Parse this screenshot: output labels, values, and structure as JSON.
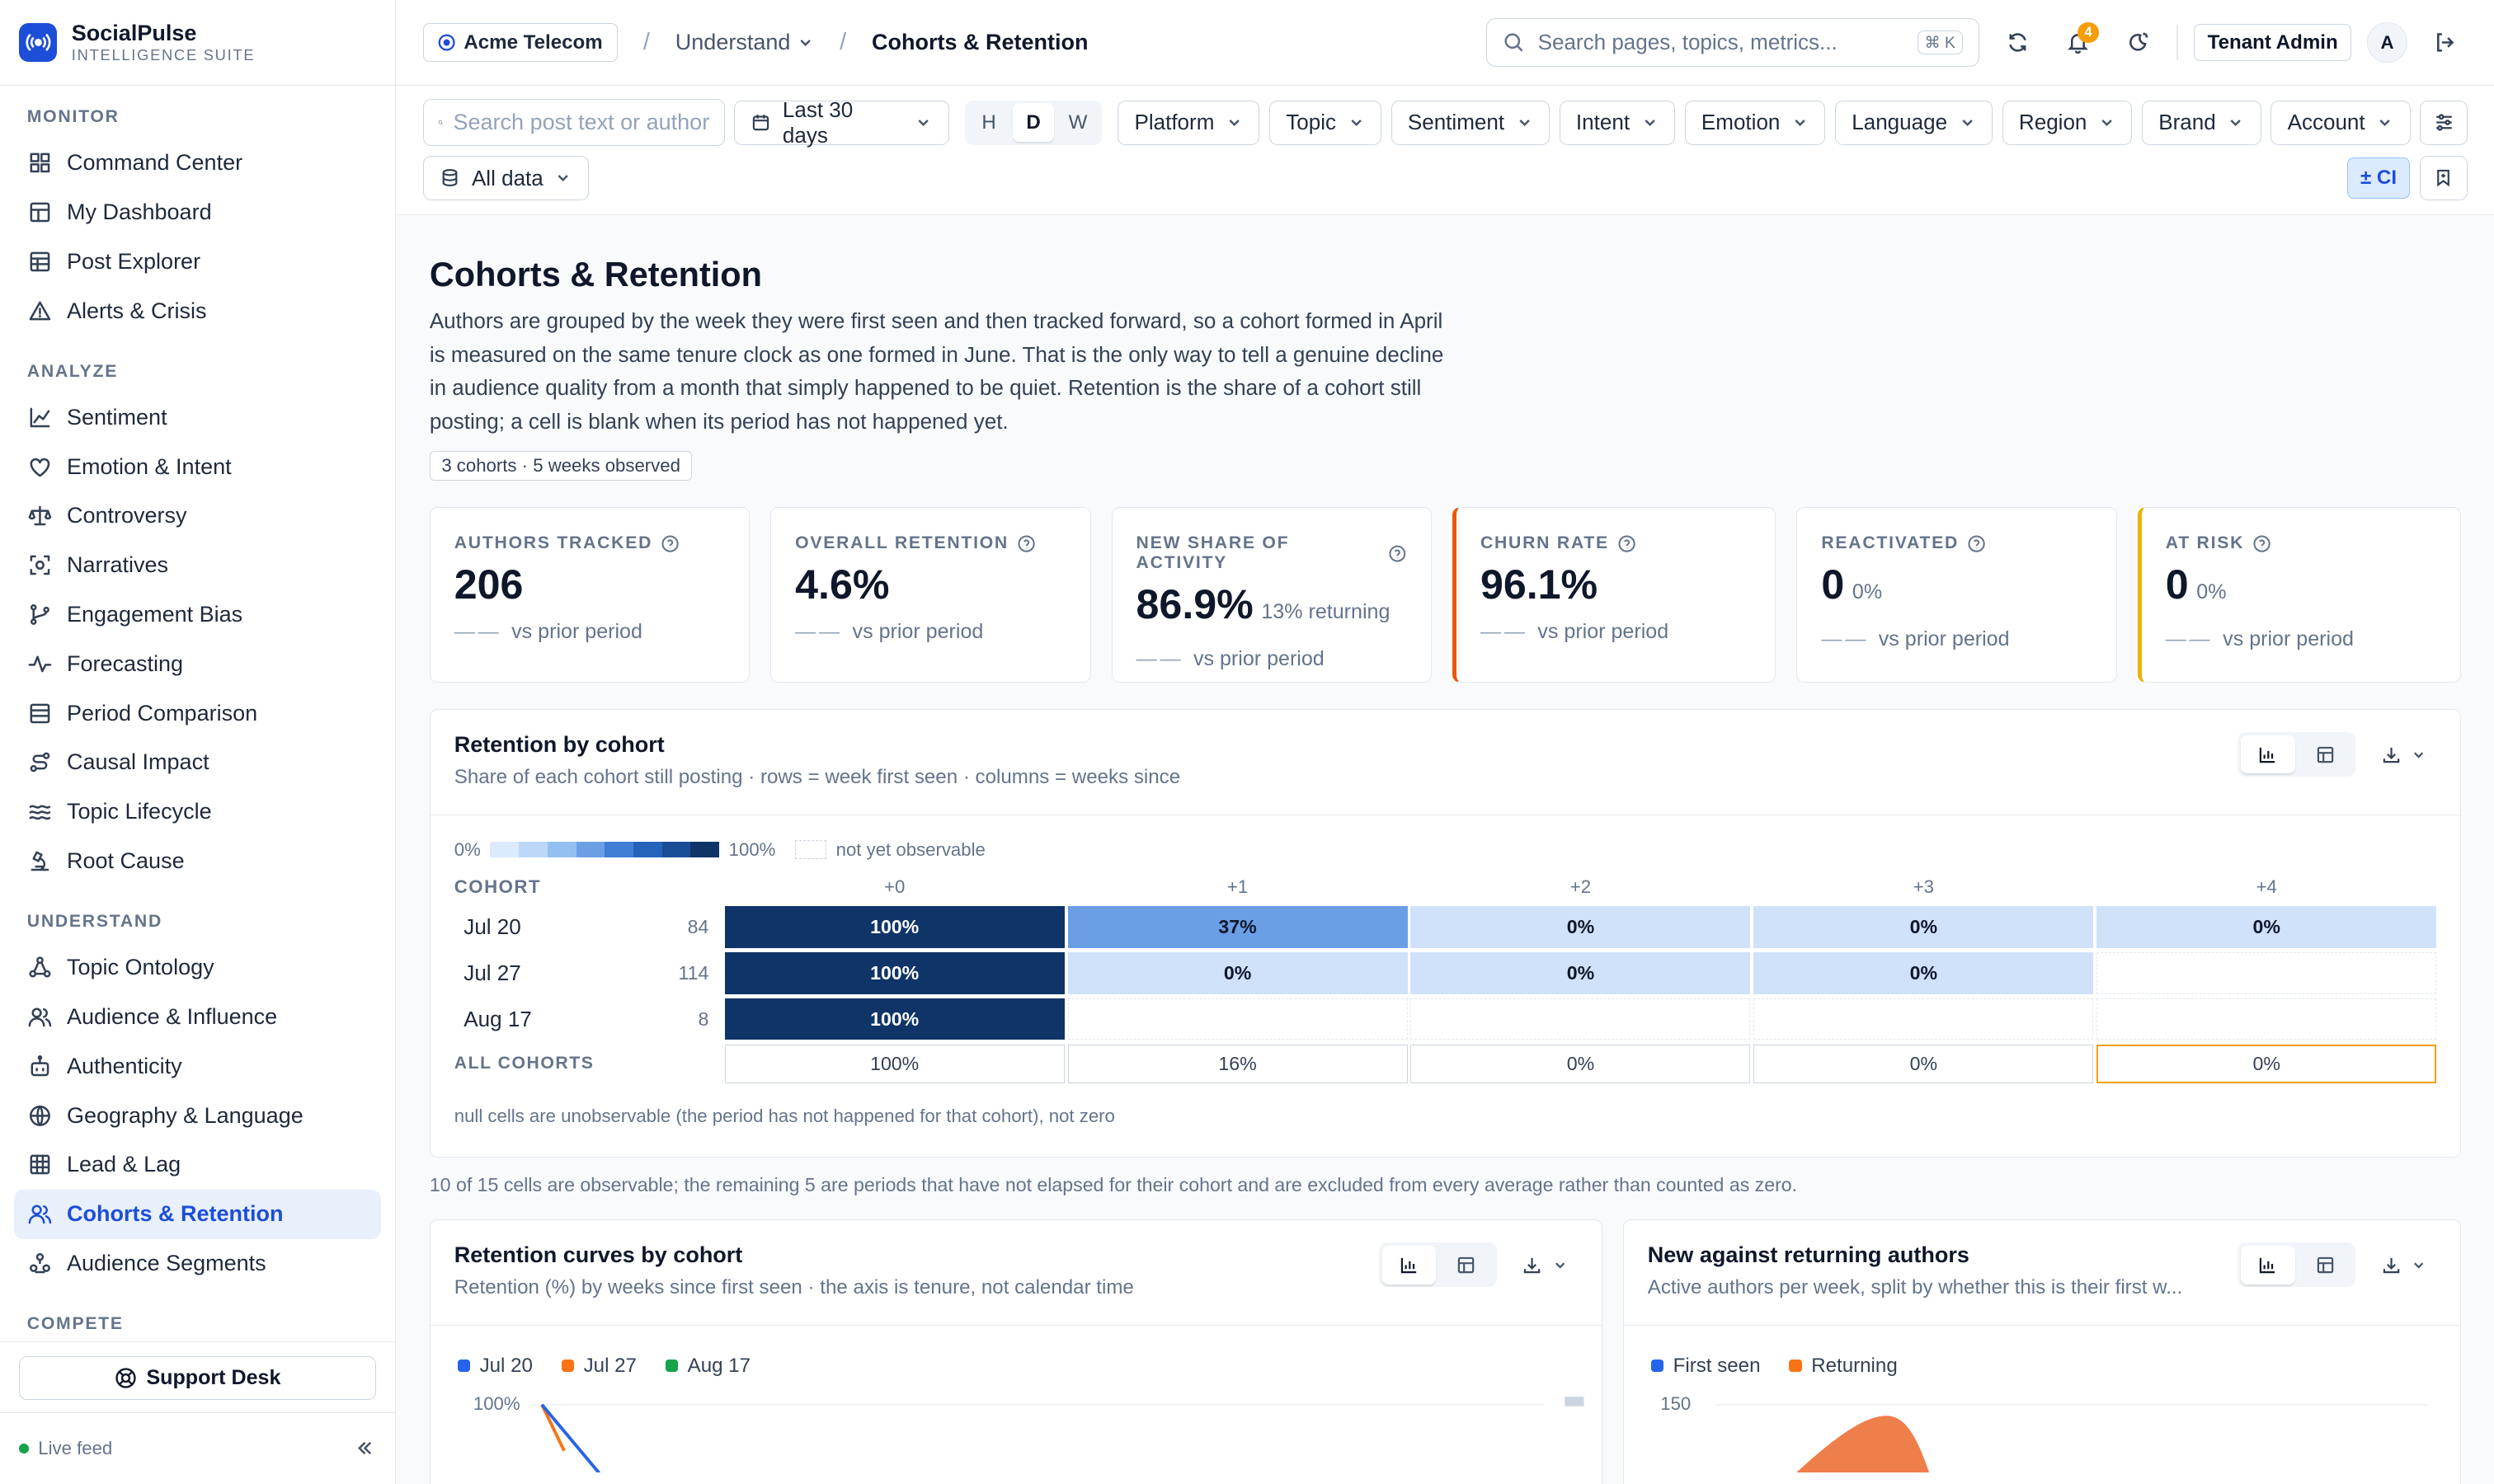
{
  "brand": {
    "name": "SocialPulse",
    "sub": "INTELLIGENCE SUITE"
  },
  "sidebar": {
    "sections": [
      {
        "label": "MONITOR",
        "items": [
          {
            "label": "Command Center",
            "icon": "grid-icon"
          },
          {
            "label": "My Dashboard",
            "icon": "dashboard-icon"
          },
          {
            "label": "Post Explorer",
            "icon": "table-icon"
          },
          {
            "label": "Alerts & Crisis",
            "icon": "alert-triangle-icon"
          }
        ]
      },
      {
        "label": "ANALYZE",
        "items": [
          {
            "label": "Sentiment",
            "icon": "line-chart-icon"
          },
          {
            "label": "Emotion & Intent",
            "icon": "heart-icon"
          },
          {
            "label": "Controversy",
            "icon": "scale-icon"
          },
          {
            "label": "Narratives",
            "icon": "scan-icon"
          },
          {
            "label": "Engagement Bias",
            "icon": "branch-icon"
          },
          {
            "label": "Forecasting",
            "icon": "pulse-icon"
          },
          {
            "label": "Period Comparison",
            "icon": "columns-icon"
          },
          {
            "label": "Causal Impact",
            "icon": "route-icon"
          },
          {
            "label": "Topic Lifecycle",
            "icon": "waves-icon"
          },
          {
            "label": "Root Cause",
            "icon": "microscope-icon"
          }
        ]
      },
      {
        "label": "UNDERSTAND",
        "items": [
          {
            "label": "Topic Ontology",
            "icon": "network-icon"
          },
          {
            "label": "Audience & Influence",
            "icon": "users-icon"
          },
          {
            "label": "Authenticity",
            "icon": "bot-icon"
          },
          {
            "label": "Geography & Language",
            "icon": "globe-icon"
          },
          {
            "label": "Lead & Lag",
            "icon": "grid-table-icon"
          },
          {
            "label": "Cohorts & Retention",
            "icon": "users-icon",
            "active": true
          },
          {
            "label": "Audience Segments",
            "icon": "segments-icon"
          }
        ]
      },
      {
        "label": "COMPETE",
        "items": []
      }
    ],
    "support": "Support Desk",
    "live": "Live feed"
  },
  "topbar": {
    "tenant": "Acme Telecom",
    "crumb_parent": "Understand",
    "crumb_current": "Cohorts & Retention",
    "search_placeholder": "Search pages, topics, metrics...",
    "shortcut": "⌘ K",
    "notifications": "4",
    "role": "Tenant Admin",
    "avatar": "A"
  },
  "filters": {
    "search_placeholder": "Search post text or author",
    "range": "Last 30 days",
    "granularity": [
      "H",
      "D",
      "W"
    ],
    "granularity_selected": "D",
    "dropdowns": [
      "Platform",
      "Topic",
      "Sentiment",
      "Intent",
      "Emotion",
      "Language",
      "Region",
      "Brand",
      "Account"
    ],
    "dataset": "All data",
    "ci": "± CI"
  },
  "page": {
    "title": "Cohorts & Retention",
    "description": "Authors are grouped by the week they were first seen and then tracked forward, so a cohort formed in April is measured on the same tenure clock as one formed in June. That is the only way to tell a genuine decline in audience quality from a month that simply happened to be quiet. Retention is the share of a cohort still posting; a cell is blank when its period has not happened yet.",
    "pill": "3 cohorts · 5 weeks observed"
  },
  "kpis": [
    {
      "label": "AUTHORS TRACKED",
      "value": "206",
      "sub": "",
      "compare": "vs prior period",
      "accent": ""
    },
    {
      "label": "OVERALL RETENTION",
      "value": "4.6%",
      "sub": "",
      "compare": "vs prior period",
      "accent": ""
    },
    {
      "label": "NEW SHARE OF ACTIVITY",
      "value": "86.9%",
      "sub": "13% returning",
      "compare": "vs prior period",
      "accent": ""
    },
    {
      "label": "CHURN RATE",
      "value": "96.1%",
      "sub": "",
      "compare": "vs prior period",
      "accent": "#ea580c"
    },
    {
      "label": "REACTIVATED",
      "value": "0",
      "sub": "0%",
      "compare": "vs prior period",
      "accent": ""
    },
    {
      "label": "AT RISK",
      "value": "0",
      "sub": "0%",
      "compare": "vs prior period",
      "accent": "#eab308"
    }
  ],
  "retention": {
    "title": "Retention by cohort",
    "subtitle": "Share of each cohort still posting · rows = week first seen · columns = weeks since",
    "legend_min": "0%",
    "legend_max": "100%",
    "legend_na": "not yet observable",
    "header_cohort": "COHORT",
    "columns": [
      "+0",
      "+1",
      "+2",
      "+3",
      "+4"
    ],
    "rows": [
      {
        "cohort": "Jul 20",
        "size": "84",
        "values": [
          100,
          37,
          0,
          0,
          0
        ]
      },
      {
        "cohort": "Jul 27",
        "size": "114",
        "values": [
          100,
          0,
          0,
          0,
          null
        ]
      },
      {
        "cohort": "Aug 17",
        "size": "8",
        "values": [
          100,
          null,
          null,
          null,
          null
        ]
      }
    ],
    "all_label": "ALL COHORTS",
    "all_values": [
      "100%",
      "16%",
      "0%",
      "0%",
      "0%"
    ],
    "null_note": "null cells are unobservable (the period has not happened for that cohort), not zero",
    "observable_note": "10 of 15 cells are observable; the remaining 5 are periods that have not elapsed for their cohort and are excluded from every average rather than counted as zero."
  },
  "curves": {
    "title": "Retention curves by cohort",
    "subtitle": "Retention (%) by weeks since first seen · the axis is tenure, not calendar time",
    "legend": [
      {
        "name": "Jul 20",
        "color": "#2563eb"
      },
      {
        "name": "Jul 27",
        "color": "#f97316"
      },
      {
        "name": "Aug 17",
        "color": "#16a34a"
      }
    ],
    "y_top": "100%"
  },
  "newret": {
    "title": "New against returning authors",
    "subtitle": "Active authors per week, split by whether this is their first w...",
    "legend": [
      {
        "name": "First seen",
        "color": "#2563eb"
      },
      {
        "name": "Returning",
        "color": "#f97316"
      }
    ],
    "y_top": "150"
  },
  "chart_data": [
    {
      "type": "heatmap",
      "title": "Retention by cohort",
      "xlabel": "weeks since first seen",
      "ylabel": "Cohort",
      "x": [
        "+0",
        "+1",
        "+2",
        "+3",
        "+4"
      ],
      "y": [
        "Jul 20",
        "Jul 27",
        "Aug 17"
      ],
      "values": [
        [
          100,
          37,
          0,
          0,
          0
        ],
        [
          100,
          0,
          0,
          0,
          null
        ],
        [
          100,
          null,
          null,
          null,
          null
        ]
      ]
    }
  ],
  "colors": {
    "accent": "#1d4ed8",
    "heat_high": "#0f3468",
    "heat_mid": "#6a9fe6",
    "heat_low": "#cfe2fa"
  }
}
